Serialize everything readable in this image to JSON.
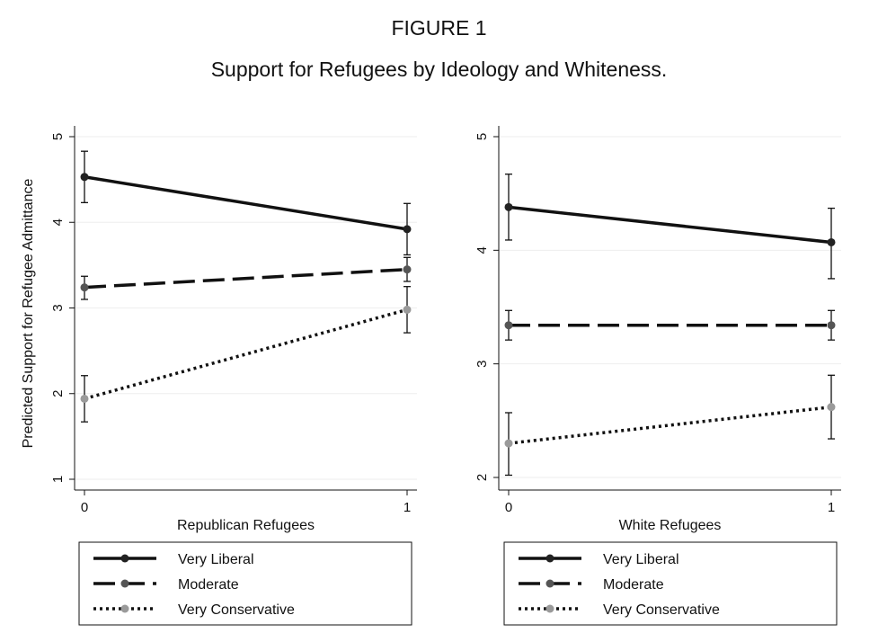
{
  "figure_label": "FIGURE 1",
  "figure_title": "Support for Refugees by Ideology and Whiteness.",
  "colors": {
    "very_liberal": "#222222",
    "moderate": "#555555",
    "very_conservative": "#9a9a9a",
    "line": "#111111",
    "gridline": "#eeeeee"
  },
  "chart_data": [
    {
      "type": "line",
      "xlabel": "Republican Refugees",
      "ylabel": "Predicted Support for Refugee Admittance",
      "x": [
        0,
        1
      ],
      "xticks": [
        "0",
        "1"
      ],
      "ylim": [
        1,
        5
      ],
      "yticks": [
        1,
        2,
        3,
        4,
        5
      ],
      "grid": true,
      "legend_placement": "bottom",
      "series": [
        {
          "name": "Very Liberal",
          "style": "solid",
          "values": [
            4.53,
            3.92
          ],
          "ci_low": [
            4.23,
            3.62
          ],
          "ci_high": [
            4.83,
            4.22
          ]
        },
        {
          "name": "Moderate",
          "style": "dashed",
          "values": [
            3.24,
            3.45
          ],
          "ci_low": [
            3.1,
            3.31
          ],
          "ci_high": [
            3.37,
            3.59
          ]
        },
        {
          "name": "Very Conservative",
          "style": "dotted",
          "values": [
            1.94,
            2.98
          ],
          "ci_low": [
            1.67,
            2.71
          ],
          "ci_high": [
            2.21,
            3.25
          ]
        }
      ]
    },
    {
      "type": "line",
      "xlabel": "White Refugees",
      "ylabel": "",
      "x": [
        0,
        1
      ],
      "xticks": [
        "0",
        "1"
      ],
      "ylim": [
        2,
        5
      ],
      "yticks": [
        2,
        3,
        4,
        5
      ],
      "grid": true,
      "legend_placement": "bottom",
      "series": [
        {
          "name": "Very Liberal",
          "style": "solid",
          "values": [
            4.38,
            4.07
          ],
          "ci_low": [
            4.09,
            3.75
          ],
          "ci_high": [
            4.67,
            4.37
          ]
        },
        {
          "name": "Moderate",
          "style": "dashed",
          "values": [
            3.34,
            3.34
          ],
          "ci_low": [
            3.21,
            3.21
          ],
          "ci_high": [
            3.47,
            3.47
          ]
        },
        {
          "name": "Very Conservative",
          "style": "dotted",
          "values": [
            2.3,
            2.62
          ],
          "ci_low": [
            2.02,
            2.34
          ],
          "ci_high": [
            2.57,
            2.9
          ]
        }
      ]
    }
  ]
}
